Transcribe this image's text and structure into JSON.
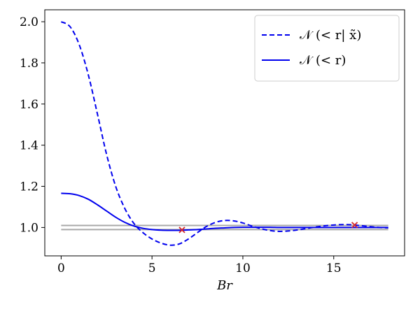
{
  "chart_data": {
    "type": "line",
    "xlabel": "Br",
    "ylabel": "",
    "xlim": [
      -0.9,
      18.9
    ],
    "ylim": [
      0.862,
      2.058
    ],
    "xticks": [
      0,
      5,
      10,
      15
    ],
    "xtick_labels": [
      "0",
      "5",
      "10",
      "15"
    ],
    "yticks": [
      1.0,
      1.2,
      1.4,
      1.6,
      1.8,
      2.0
    ],
    "ytick_labels": [
      "1.0",
      "1.2",
      "1.4",
      "1.6",
      "1.8",
      "2.0"
    ],
    "grid": false,
    "legend_position": "upper-right",
    "legend": [
      "𝒩 (< r| x̃)",
      "𝒩 (< r)"
    ],
    "colors": {
      "series": "#0000ee",
      "reference_lines": "#a8a8a8",
      "marker": "#d62728"
    },
    "series": [
      {
        "name": "𝒩 (< r| x̃)",
        "style": "dashed",
        "x": [
          0,
          0.5,
          1,
          1.5,
          2,
          2.5,
          3,
          3.5,
          4,
          4.5,
          5,
          5.5,
          6,
          6.5,
          7,
          7.5,
          8,
          8.5,
          9,
          9.5,
          10,
          10.5,
          11,
          11.5,
          12,
          12.5,
          13,
          13.5,
          14,
          14.5,
          15,
          15.5,
          16,
          16.5,
          17,
          17.5,
          18
        ],
        "y": [
          2.0,
          1.975,
          1.887,
          1.74,
          1.55,
          1.355,
          1.2,
          1.093,
          1.02,
          0.975,
          0.944,
          0.924,
          0.914,
          0.92,
          0.944,
          0.975,
          1.005,
          1.025,
          1.034,
          1.032,
          1.022,
          1.007,
          0.994,
          0.985,
          0.981,
          0.983,
          0.988,
          0.995,
          1.002,
          1.008,
          1.012,
          1.014,
          1.013,
          1.009,
          1.004,
          1.0,
          0.998
        ]
      },
      {
        "name": "𝒩 (< r)",
        "style": "solid",
        "x": [
          0,
          0.5,
          1,
          1.5,
          2,
          2.5,
          3,
          3.5,
          4,
          4.5,
          5,
          5.5,
          6,
          6.5,
          7,
          7.5,
          8,
          8.5,
          9,
          9.5,
          10,
          10.5,
          11,
          11.5,
          12,
          12.5,
          13,
          13.5,
          14,
          14.5,
          15,
          15.5,
          16,
          16.5,
          17,
          17.5,
          18
        ],
        "y": [
          1.166,
          1.164,
          1.155,
          1.137,
          1.11,
          1.08,
          1.05,
          1.025,
          1.007,
          0.996,
          0.99,
          0.987,
          0.986,
          0.986,
          0.988,
          0.99,
          0.993,
          0.996,
          0.998,
          1.0,
          1.001,
          1.001,
          1.001,
          1.001,
          1.0,
          1.0,
          1.0,
          1.0,
          1.0,
          1.0,
          1.0,
          1.0,
          1.0,
          1.0,
          1.0,
          1.0,
          1.0
        ]
      }
    ],
    "reference_lines_y": [
      1.01,
      0.99
    ],
    "reference_lines_x_range": [
      0,
      18
    ],
    "markers": [
      {
        "x": 6.65,
        "y": 0.988,
        "symbol": "x"
      },
      {
        "x": 16.15,
        "y": 1.012,
        "symbol": "x"
      }
    ]
  }
}
